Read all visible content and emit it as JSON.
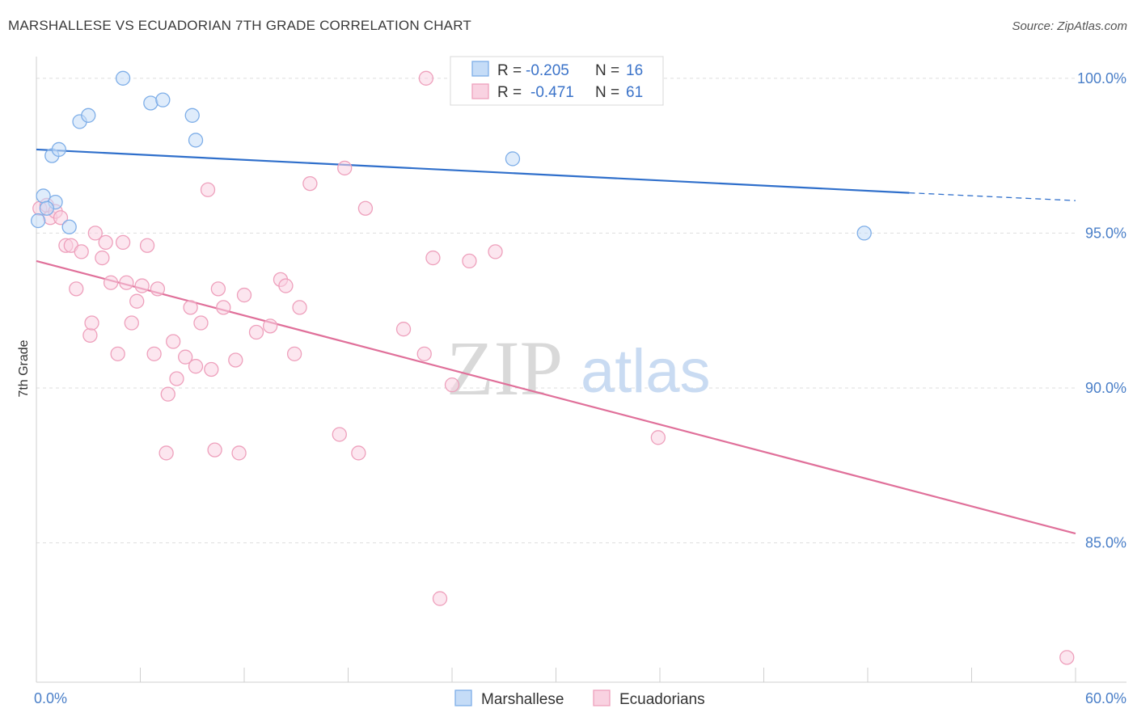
{
  "title": "MARSHALLESE VS ECUADORIAN 7TH GRADE CORRELATION CHART",
  "source": "Source: ZipAtlas.com",
  "watermark": {
    "zip": "ZIP",
    "atlas": "atlas"
  },
  "colors": {
    "blue": "#7eaee8",
    "blue_fill": "#c5dcf7",
    "blue_line": "#2f6fcb",
    "pink": "#eea0bc",
    "pink_fill": "#f9d2e1",
    "pink_line": "#e0709a",
    "tick_text": "#4a7fc8",
    "grid": "#dedede"
  },
  "legend_top": {
    "rows": [
      {
        "r_label": "R =",
        "r_value": "-0.205",
        "n_label": "N =",
        "n_value": "16",
        "color": "blue"
      },
      {
        "r_label": "R =",
        "r_value": "-0.471",
        "n_label": "N =",
        "n_value": "61",
        "color": "pink"
      }
    ]
  },
  "legend_bottom": [
    "Marshallese",
    "Ecuadorians"
  ],
  "chart_data": {
    "type": "scatter",
    "xlabel": "",
    "ylabel": "7th Grade",
    "xlim": [
      0,
      60
    ],
    "ylim": [
      80.5,
      100.7
    ],
    "x_tick_labels": [
      {
        "value": 0,
        "label": "0.0%"
      },
      {
        "value": 60,
        "label": "60.0%"
      }
    ],
    "y_tick_labels": [
      {
        "value": 100,
        "label": "100.0%"
      },
      {
        "value": 95,
        "label": "95.0%"
      },
      {
        "value": 90,
        "label": "90.0%"
      },
      {
        "value": 85,
        "label": "85.0%"
      }
    ],
    "grid": true,
    "legend_placement": "top-center",
    "series": [
      {
        "name": "Marshallese",
        "color": "blue",
        "trend": {
          "x0": 0,
          "y0": 97.7,
          "x1": 50.4,
          "y1": 96.3,
          "dash_to": 60,
          "dash_y": 96.05
        },
        "points": [
          [
            0.1,
            95.4
          ],
          [
            0.4,
            96.2
          ],
          [
            0.9,
            97.5
          ],
          [
            1.1,
            96.0
          ],
          [
            1.3,
            97.7
          ],
          [
            1.9,
            95.2
          ],
          [
            2.5,
            98.6
          ],
          [
            3.0,
            98.8
          ],
          [
            5.0,
            100.0
          ],
          [
            6.6,
            99.2
          ],
          [
            7.3,
            99.3
          ],
          [
            9.0,
            98.8
          ],
          [
            9.2,
            98.0
          ],
          [
            27.5,
            97.4
          ],
          [
            47.8,
            95.0
          ],
          [
            0.6,
            95.8
          ]
        ]
      },
      {
        "name": "Ecuadorians",
        "color": "pink",
        "trend": {
          "x0": 0,
          "y0": 94.1,
          "x1": 60,
          "y1": 85.3
        },
        "points": [
          [
            0.2,
            95.8
          ],
          [
            0.6,
            95.9
          ],
          [
            0.8,
            95.5
          ],
          [
            1.1,
            95.7
          ],
          [
            1.4,
            95.5
          ],
          [
            1.7,
            94.6
          ],
          [
            2.0,
            94.6
          ],
          [
            2.3,
            93.2
          ],
          [
            2.6,
            94.4
          ],
          [
            3.1,
            91.7
          ],
          [
            3.2,
            92.1
          ],
          [
            3.4,
            95.0
          ],
          [
            3.8,
            94.2
          ],
          [
            4.0,
            94.7
          ],
          [
            4.3,
            93.4
          ],
          [
            4.7,
            91.1
          ],
          [
            5.0,
            94.7
          ],
          [
            5.2,
            93.4
          ],
          [
            5.5,
            92.1
          ],
          [
            5.8,
            92.8
          ],
          [
            6.1,
            93.3
          ],
          [
            6.4,
            94.6
          ],
          [
            6.8,
            91.1
          ],
          [
            7.0,
            93.2
          ],
          [
            7.5,
            87.9
          ],
          [
            7.6,
            89.8
          ],
          [
            7.9,
            91.5
          ],
          [
            8.1,
            90.3
          ],
          [
            8.6,
            91.0
          ],
          [
            8.9,
            92.6
          ],
          [
            9.2,
            90.7
          ],
          [
            9.5,
            92.1
          ],
          [
            9.9,
            96.4
          ],
          [
            10.1,
            90.6
          ],
          [
            10.3,
            88.0
          ],
          [
            10.5,
            93.2
          ],
          [
            10.8,
            92.6
          ],
          [
            11.5,
            90.9
          ],
          [
            11.7,
            87.9
          ],
          [
            12.0,
            93.0
          ],
          [
            12.7,
            91.8
          ],
          [
            13.5,
            92.0
          ],
          [
            14.1,
            93.5
          ],
          [
            14.4,
            93.3
          ],
          [
            14.9,
            91.1
          ],
          [
            15.2,
            92.6
          ],
          [
            15.8,
            96.6
          ],
          [
            17.5,
            88.5
          ],
          [
            17.8,
            97.1
          ],
          [
            18.6,
            87.9
          ],
          [
            19.0,
            95.8
          ],
          [
            21.2,
            91.9
          ],
          [
            22.4,
            91.1
          ],
          [
            22.5,
            100.0
          ],
          [
            22.9,
            94.2
          ],
          [
            23.3,
            83.2
          ],
          [
            24.0,
            90.1
          ],
          [
            25.0,
            94.1
          ],
          [
            26.5,
            94.4
          ],
          [
            35.9,
            88.4
          ],
          [
            59.5,
            81.3
          ]
        ]
      }
    ]
  }
}
